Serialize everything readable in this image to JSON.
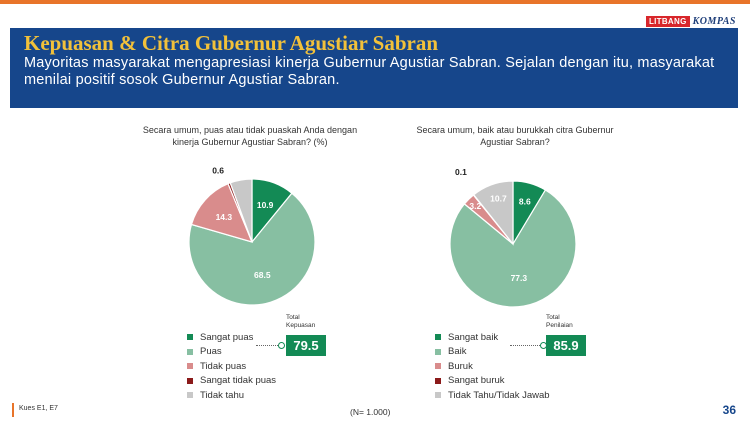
{
  "brand": {
    "litbang": "LITBANG",
    "kompas": "KOMPAS"
  },
  "header": {
    "title": "Kepuasan & Citra Gubernur Agustiar Sabran",
    "subtitle": "Mayoritas masyarakat mengapresiasi kinerja Gubernur Agustiar Sabran. Sejalan dengan itu, masyarakat menilai positif sosok Gubernur Agustiar Sabran."
  },
  "colors": {
    "header_bg": "#16468b",
    "title": "#f2c13a",
    "dark_green": "#138a55",
    "light_green": "#87bfa2",
    "pink": "#d98c8c",
    "dark_red": "#8b1a1a",
    "gray": "#c8c8c8"
  },
  "chart_data": [
    {
      "type": "pie",
      "title": "Secara umum, puas atau tidak puaskah Anda dengan kinerja Gubernur Agustiar Sabran? (%)",
      "slices": [
        {
          "label": "Sangat puas",
          "value": 10.9,
          "color": "#138a55"
        },
        {
          "label": "Puas",
          "value": 68.5,
          "color": "#87bfa2"
        },
        {
          "label": "Tidak puas",
          "value": 14.3,
          "color": "#d98c8c"
        },
        {
          "label": "Sangat tidak puas",
          "value": 0.6,
          "color": "#8b1a1a"
        },
        {
          "label": "Tidak tahu",
          "value": 5.6,
          "color": "#c8c8c8"
        }
      ],
      "total_label_1": "Total",
      "total_label_2": "Kepuasan",
      "total_value": "79.5"
    },
    {
      "type": "pie",
      "title": "Secara umum, baik atau burukkah citra Gubernur Agustiar Sabran?",
      "slices": [
        {
          "label": "Sangat baik",
          "value": 8.6,
          "color": "#138a55"
        },
        {
          "label": "Baik",
          "value": 77.3,
          "color": "#87bfa2"
        },
        {
          "label": "Buruk",
          "value": 3.2,
          "color": "#d98c8c"
        },
        {
          "label": "Sangat buruk",
          "value": 0.1,
          "color": "#8b1a1a"
        },
        {
          "label": "Tidak Tahu/Tidak Jawab",
          "value": 10.7,
          "color": "#c8c8c8"
        }
      ],
      "total_label_1": "Total",
      "total_label_2": "Penilaian",
      "total_value": "85.9"
    }
  ],
  "footer": {
    "source": "Kues E1, E7",
    "n": "(N= 1.000)",
    "page": "36"
  }
}
